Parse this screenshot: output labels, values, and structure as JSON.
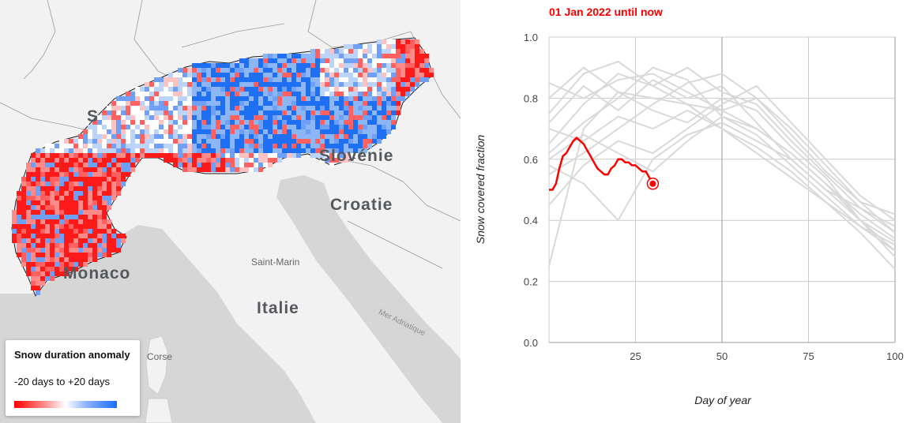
{
  "map": {
    "labels": {
      "slovenia": "Slovénie",
      "croatia": "Croatie",
      "monaco": "Monaco",
      "italy": "Italie",
      "san_marino": "Saint-Marin",
      "corsica": "Corse",
      "adriatic_sea": "Mer Adriatique",
      "switzerland_partial": "S"
    },
    "legend": {
      "title": "Snow duration anomaly",
      "range": "-20 days to +20 days",
      "color_low": "#ff0000",
      "color_mid": "#ffffff",
      "color_high": "#1a6dff"
    },
    "colors": {
      "land": "#f2f2f2",
      "sea": "#d6d6d6",
      "anomaly_negative": "#ff2020",
      "anomaly_positive": "#2a78f5"
    }
  },
  "chart_data": {
    "type": "line",
    "title": "01 Jan 2022 until now",
    "xlabel": "Day of year",
    "ylabel": "Snow covered fraction",
    "xlim": [
      0,
      100
    ],
    "ylim": [
      0,
      1
    ],
    "x_ticks": [
      "25",
      "50",
      "75",
      "100"
    ],
    "y_ticks": [
      "0.0",
      "0.2",
      "0.4",
      "0.6",
      "0.8",
      "1.0"
    ],
    "grid": true,
    "highlight_color": "#ff0000",
    "history_color": "#d9d9d9",
    "current_series": {
      "x": [
        0,
        1,
        2,
        3,
        4,
        5,
        6,
        7,
        8,
        9,
        10,
        11,
        12,
        13,
        14,
        15,
        16,
        17,
        18,
        19,
        20,
        21,
        22,
        23,
        24,
        25,
        26,
        27,
        28,
        29,
        30
      ],
      "y": [
        0.5,
        0.5,
        0.52,
        0.57,
        0.61,
        0.62,
        0.64,
        0.66,
        0.67,
        0.66,
        0.65,
        0.63,
        0.61,
        0.59,
        0.57,
        0.56,
        0.55,
        0.55,
        0.57,
        0.58,
        0.6,
        0.6,
        0.59,
        0.59,
        0.58,
        0.58,
        0.57,
        0.56,
        0.56,
        0.54,
        0.52
      ]
    },
    "current_marker": {
      "x": 30,
      "y": 0.52
    },
    "history_series": [
      {
        "x": [
          0,
          10,
          20,
          30,
          40,
          50,
          60,
          70,
          80,
          90,
          100
        ],
        "y": [
          0.25,
          0.7,
          0.82,
          0.8,
          0.78,
          0.76,
          0.7,
          0.62,
          0.52,
          0.42,
          0.34
        ]
      },
      {
        "x": [
          0,
          10,
          20,
          30,
          40,
          50,
          60,
          70,
          80,
          90,
          100
        ],
        "y": [
          0.65,
          0.78,
          0.88,
          0.84,
          0.9,
          0.82,
          0.78,
          0.66,
          0.55,
          0.44,
          0.38
        ]
      },
      {
        "x": [
          0,
          10,
          20,
          30,
          40,
          50,
          60,
          70,
          80,
          90,
          100
        ],
        "y": [
          0.72,
          0.84,
          0.76,
          0.86,
          0.8,
          0.84,
          0.72,
          0.6,
          0.5,
          0.4,
          0.3
        ]
      },
      {
        "x": [
          0,
          10,
          20,
          30,
          40,
          50,
          60,
          70,
          80,
          90,
          100
        ],
        "y": [
          0.55,
          0.62,
          0.7,
          0.78,
          0.85,
          0.88,
          0.8,
          0.7,
          0.58,
          0.46,
          0.36
        ]
      },
      {
        "x": [
          0,
          10,
          20,
          30,
          40,
          50,
          60,
          70,
          80,
          90,
          100
        ],
        "y": [
          0.8,
          0.9,
          0.82,
          0.76,
          0.72,
          0.8,
          0.76,
          0.64,
          0.54,
          0.4,
          0.28
        ]
      },
      {
        "x": [
          0,
          10,
          20,
          30,
          40,
          50,
          60,
          70,
          80,
          90,
          100
        ],
        "y": [
          0.45,
          0.58,
          0.66,
          0.62,
          0.7,
          0.78,
          0.84,
          0.72,
          0.6,
          0.48,
          0.4
        ]
      },
      {
        "x": [
          0,
          10,
          20,
          30,
          40,
          50,
          60,
          70,
          80,
          90,
          100
        ],
        "y": [
          0.62,
          0.72,
          0.8,
          0.9,
          0.86,
          0.74,
          0.68,
          0.58,
          0.48,
          0.38,
          0.32
        ]
      },
      {
        "x": [
          0,
          10,
          20,
          30,
          40,
          50,
          60,
          70,
          80,
          90,
          100
        ],
        "y": [
          0.7,
          0.66,
          0.74,
          0.7,
          0.76,
          0.7,
          0.64,
          0.56,
          0.46,
          0.36,
          0.24
        ]
      },
      {
        "x": [
          0,
          10,
          20,
          30,
          40,
          50,
          60,
          70,
          80,
          90,
          100
        ],
        "y": [
          0.58,
          0.52,
          0.4,
          0.6,
          0.68,
          0.72,
          0.66,
          0.6,
          0.5,
          0.44,
          0.36
        ]
      },
      {
        "x": [
          0,
          10,
          20,
          30,
          40,
          50,
          60,
          70,
          80,
          90,
          100
        ],
        "y": [
          0.75,
          0.88,
          0.92,
          0.84,
          0.78,
          0.7,
          0.62,
          0.54,
          0.46,
          0.38,
          0.3
        ]
      },
      {
        "x": [
          0,
          10,
          20,
          30,
          40,
          50,
          60,
          70,
          80,
          90,
          100
        ],
        "y": [
          0.85,
          0.8,
          0.86,
          0.88,
          0.82,
          0.76,
          0.8,
          0.68,
          0.56,
          0.46,
          0.42
        ]
      },
      {
        "x": [
          0,
          10,
          20,
          30,
          40,
          50,
          60,
          70,
          80,
          90,
          100
        ],
        "y": [
          0.6,
          0.68,
          0.62,
          0.56,
          0.66,
          0.74,
          0.7,
          0.62,
          0.52,
          0.4,
          0.33
        ]
      }
    ]
  }
}
